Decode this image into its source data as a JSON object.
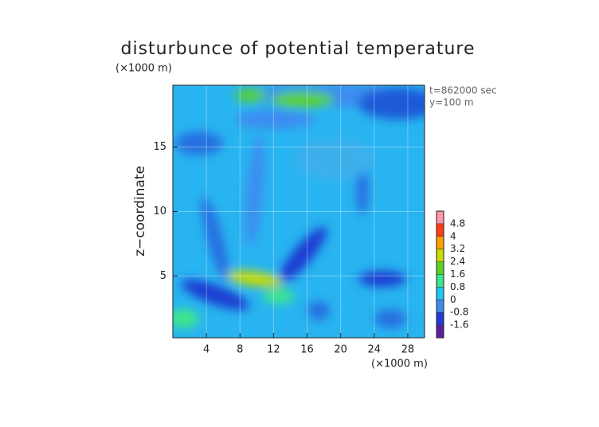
{
  "chart_data": {
    "type": "contour",
    "title": "disturbunce of potential temperature",
    "x_unit_label": "(×1000 m)",
    "y_unit_label": "(×1000 m)",
    "ylabel": "z−coordinate",
    "annotations": [
      "t=862000 sec",
      "y=100 m"
    ],
    "xlim": [
      0,
      30
    ],
    "xticks": [
      4,
      8,
      12,
      16,
      20,
      24,
      28
    ],
    "ylim": [
      0.2,
      19.8
    ],
    "yticks": [
      5,
      10,
      15
    ],
    "grid": true,
    "levels": [
      -1.6,
      -0.8,
      0,
      0.8,
      1.6,
      2.4,
      3.2,
      4,
      4.8
    ],
    "colors": [
      "#5a1ea0",
      "#1e3cd2",
      "#3c8cf0",
      "#1ec8f5",
      "#3ce68c",
      "#5ad228",
      "#c8dc00",
      "#ffa000",
      "#ff3c14",
      "#ff96aa"
    ]
  }
}
